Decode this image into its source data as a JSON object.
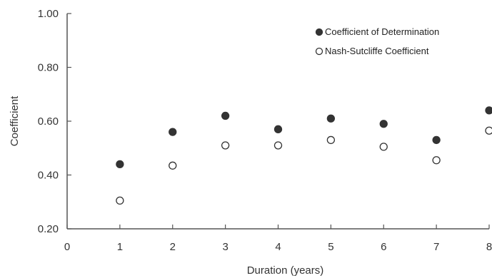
{
  "chart_data": {
    "type": "scatter",
    "title": "",
    "xlabel": "Duration (years)",
    "ylabel": "Coefficient",
    "xlim": [
      0,
      8
    ],
    "ylim": [
      0.2,
      1.0
    ],
    "xticks": [
      "0",
      "1",
      "2",
      "3",
      "4",
      "5",
      "6",
      "7",
      "8"
    ],
    "yticks": [
      "0.20",
      "0.40",
      "0.60",
      "0.80",
      "1.00"
    ],
    "grid": false,
    "legend_position": "top-right",
    "x": [
      1,
      2,
      3,
      4,
      5,
      6,
      7,
      8
    ],
    "series": [
      {
        "name": "Coefficient of Determination",
        "marker": "filled-circle",
        "color": "#333333",
        "values": [
          0.44,
          0.56,
          0.62,
          0.57,
          0.61,
          0.59,
          0.53,
          0.64
        ]
      },
      {
        "name": "Nash-Sutcliffe Coefficient",
        "marker": "open-circle",
        "color": "#333333",
        "values": [
          0.305,
          0.435,
          0.51,
          0.51,
          0.53,
          0.505,
          0.455,
          0.565
        ]
      }
    ]
  }
}
